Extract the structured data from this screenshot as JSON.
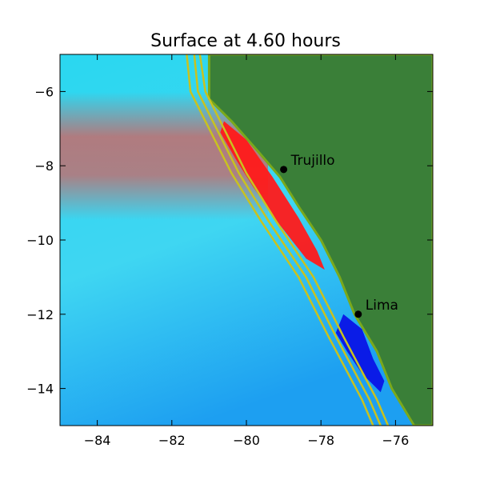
{
  "chart_data": {
    "type": "heatmap",
    "title": "Surface at 4.60 hours",
    "xlabel": "",
    "ylabel": "",
    "xlim": [
      -85,
      -75
    ],
    "ylim": [
      -15,
      -5
    ],
    "x_ticks": [
      -84,
      -82,
      -80,
      -78,
      -76
    ],
    "y_ticks": [
      -6,
      -8,
      -10,
      -12,
      -14
    ],
    "x_tick_labels": [
      "−84",
      "−82",
      "−80",
      "−78",
      "−76"
    ],
    "y_tick_labels": [
      "−6",
      "−8",
      "−10",
      "−12",
      "−14"
    ],
    "cities": [
      {
        "name": "Trujillo",
        "lon": -79.0,
        "lat": -8.1
      },
      {
        "name": "Lima",
        "lon": -77.0,
        "lat": -12.0
      }
    ],
    "coastline": [
      [
        -81.0,
        -5.0
      ],
      [
        -81.0,
        -6.2
      ],
      [
        -80.4,
        -6.8
      ],
      [
        -79.7,
        -7.6
      ],
      [
        -79.1,
        -8.3
      ],
      [
        -78.6,
        -9.1
      ],
      [
        -78.0,
        -10.0
      ],
      [
        -77.5,
        -11.0
      ],
      [
        -77.1,
        -12.0
      ],
      [
        -76.5,
        -13.0
      ],
      [
        -76.1,
        -14.0
      ],
      [
        -75.5,
        -15.0
      ],
      [
        -75.0,
        -15.0
      ],
      [
        -75.0,
        -5.0
      ]
    ],
    "contours": [
      [
        [
          -81.6,
          -5.0
        ],
        [
          -81.5,
          -6.0
        ],
        [
          -81.0,
          -7.0
        ],
        [
          -80.4,
          -8.2
        ],
        [
          -79.6,
          -9.5
        ],
        [
          -78.6,
          -11.0
        ],
        [
          -77.8,
          -12.6
        ],
        [
          -76.9,
          -14.3
        ],
        [
          -76.6,
          -15.0
        ]
      ],
      [
        [
          -81.4,
          -5.0
        ],
        [
          -81.3,
          -6.0
        ],
        [
          -80.8,
          -7.0
        ],
        [
          -80.2,
          -8.2
        ],
        [
          -79.4,
          -9.5
        ],
        [
          -78.4,
          -11.0
        ],
        [
          -77.6,
          -12.6
        ],
        [
          -76.7,
          -14.3
        ],
        [
          -76.4,
          -15.0
        ]
      ],
      [
        [
          -81.25,
          -5.0
        ],
        [
          -81.1,
          -6.0
        ],
        [
          -80.6,
          -7.0
        ],
        [
          -80.0,
          -8.2
        ],
        [
          -79.2,
          -9.5
        ],
        [
          -78.2,
          -11.0
        ],
        [
          -77.4,
          -12.6
        ],
        [
          -76.5,
          -14.3
        ],
        [
          -76.2,
          -15.0
        ]
      ]
    ],
    "wave_regions": [
      {
        "level": "high",
        "color": "#ff1a1a",
        "polygon": [
          [
            -80.6,
            -6.8
          ],
          [
            -80.0,
            -7.3
          ],
          [
            -79.3,
            -8.3
          ],
          [
            -78.6,
            -9.4
          ],
          [
            -78.1,
            -10.3
          ],
          [
            -77.9,
            -10.8
          ],
          [
            -78.4,
            -10.5
          ],
          [
            -79.1,
            -9.6
          ],
          [
            -79.8,
            -8.6
          ],
          [
            -80.3,
            -7.8
          ],
          [
            -80.7,
            -7.1
          ]
        ]
      },
      {
        "level": "low",
        "color": "#0a14e6",
        "polygon": [
          [
            -77.4,
            -12.0
          ],
          [
            -76.9,
            -12.4
          ],
          [
            -76.6,
            -13.2
          ],
          [
            -76.3,
            -13.8
          ],
          [
            -76.4,
            -14.1
          ],
          [
            -76.9,
            -13.6
          ],
          [
            -77.3,
            -13.0
          ],
          [
            -77.6,
            -12.5
          ]
        ]
      }
    ],
    "colors": {
      "land": "#3a7f38",
      "land_edge": "#7aa91b",
      "ocean": "#2ad7f0",
      "ocean_deep": "#169ef2",
      "tint_high": "#c66b6b",
      "contour": "#c9c21f"
    }
  }
}
